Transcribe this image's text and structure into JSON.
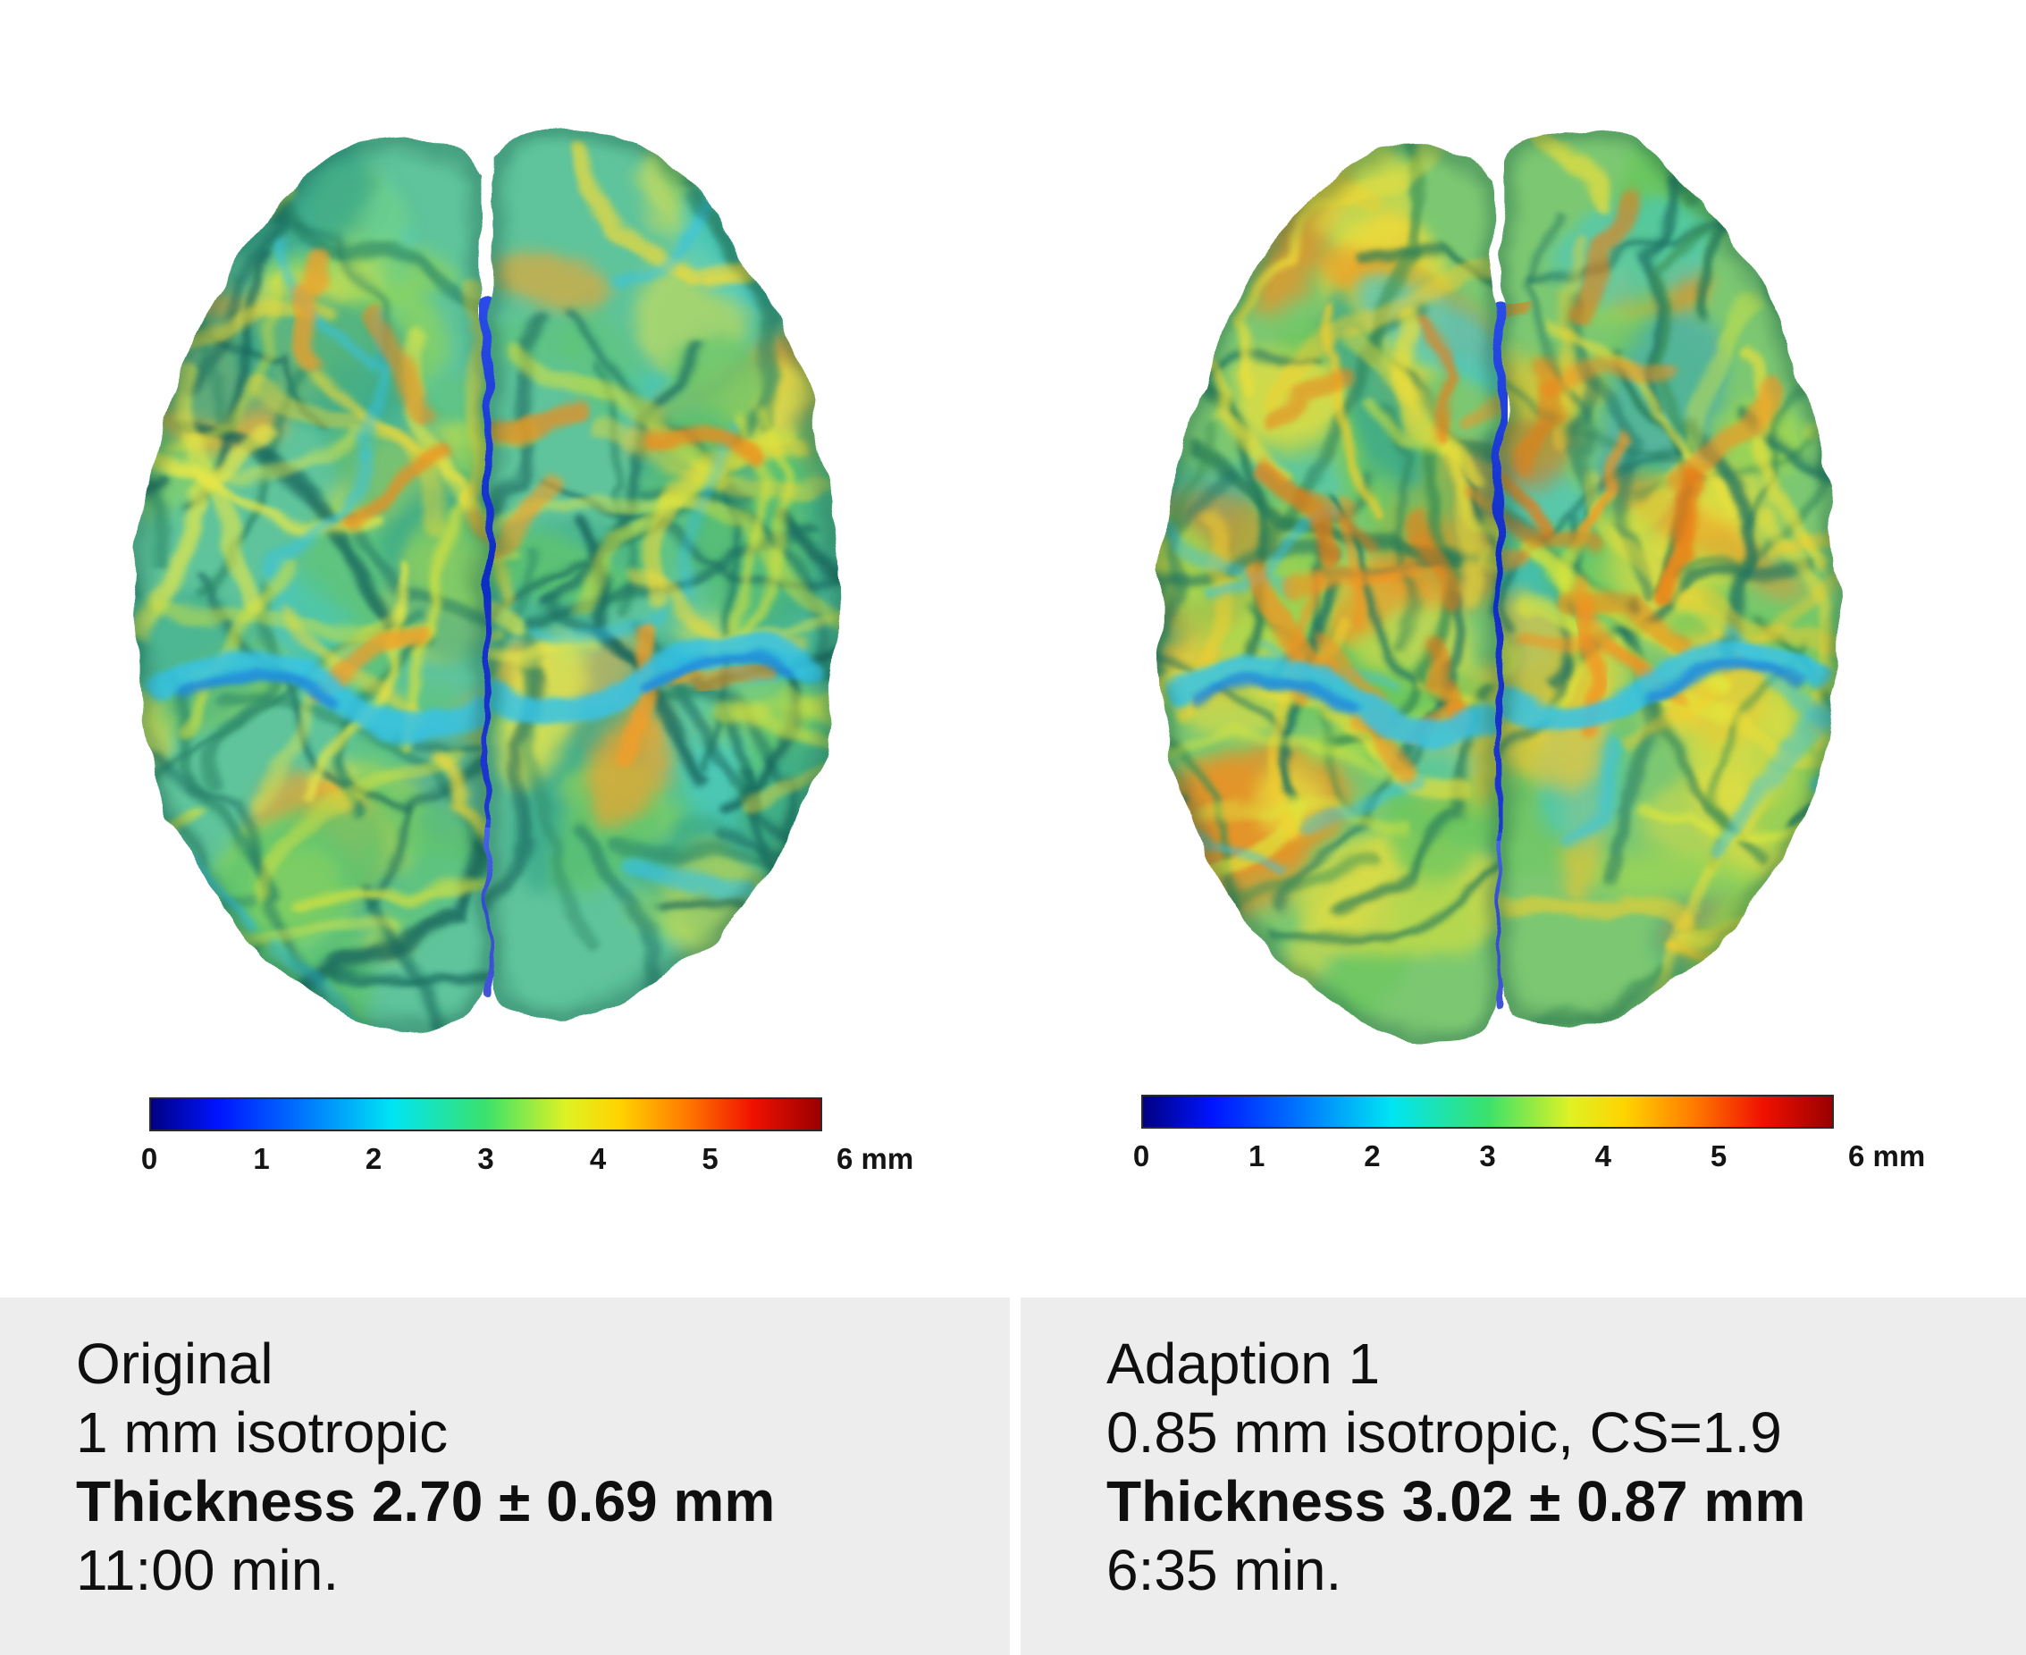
{
  "page": {
    "background": "#ffffff",
    "panel_background": "#ededed",
    "text_color": "#0f0f0f"
  },
  "colorbar": {
    "unit": "mm",
    "min": 0,
    "max": 6,
    "ticks": [
      "0",
      "1",
      "2",
      "3",
      "4",
      "5"
    ],
    "end_label": "6 mm",
    "colormap": "jet",
    "border_color": "#2a2a2a",
    "stops": [
      [
        "0",
        "#000082"
      ],
      [
        "0.10",
        "#0014ff"
      ],
      [
        "0.22",
        "#0070ff"
      ],
      [
        "0.36",
        "#00e4f4"
      ],
      [
        "0.50",
        "#3ae26b"
      ],
      [
        "0.62",
        "#dff224"
      ],
      [
        "0.70",
        "#ffd300"
      ],
      [
        "0.80",
        "#ff7a00"
      ],
      [
        "0.90",
        "#f01000"
      ],
      [
        "1",
        "#9a0000"
      ]
    ]
  },
  "panels": [
    {
      "id": "original",
      "title": "Original",
      "resolution": "1 mm isotropic",
      "thickness": "Thickness 2.70 ± 0.69 mm",
      "scan_time": "11:00 min.",
      "brain": {
        "seed": 7,
        "noise_seed": 3,
        "base": "#5fc49c",
        "fissure_top": "#2b4ce8",
        "fissure_mid": "#0f2cc4",
        "fissure_bottom": "#2038d0",
        "palette": [
          [
            "#3aa98b",
            3.0
          ],
          [
            "#5ec470",
            2.2
          ],
          [
            "#8fd45c",
            1.6
          ],
          [
            "#41c9d4",
            1.6
          ],
          [
            "#e6e44c",
            2.4
          ],
          [
            "#2f9fd0",
            0.5
          ],
          [
            "#f2a52e",
            0.45
          ]
        ],
        "sulci_colors": [
          "#1c7263",
          "#15645c",
          "#2a8768"
        ],
        "gyri_colors": [
          "#e9e84a",
          "#d8e23f",
          "#f4da38"
        ],
        "orange_colors": [
          "#f59d28",
          "#ef8b1f"
        ],
        "orange_count": 5,
        "cyan_band": "#35c3e8",
        "cyan_core": "#1b86dc"
      }
    },
    {
      "id": "adaption-1",
      "title": "Adaption 1",
      "resolution": "0.85 mm isotropic, CS=1.9",
      "thickness": "Thickness 3.02 ± 0.87 mm",
      "scan_time": "6:35 min.",
      "brain": {
        "seed": 23,
        "noise_seed": 9,
        "base": "#7cc872",
        "fissure_top": "#2b4ce8",
        "fissure_mid": "#0f2cc4",
        "fissure_bottom": "#2038d0",
        "palette": [
          [
            "#3aa98b",
            1.6
          ],
          [
            "#6cc75e",
            2.0
          ],
          [
            "#a3d84f",
            1.8
          ],
          [
            "#e8e040",
            3.0
          ],
          [
            "#f2c633",
            1.6
          ],
          [
            "#41c9d4",
            1.2
          ],
          [
            "#f08f21",
            1.7
          ],
          [
            "#e8701a",
            0.7
          ],
          [
            "#2f9fd0",
            0.35
          ]
        ],
        "sulci_colors": [
          "#257a58",
          "#1c7263",
          "#3a8f55"
        ],
        "gyri_colors": [
          "#efe03a",
          "#f5cf2e",
          "#dfe83e"
        ],
        "orange_colors": [
          "#f39320",
          "#ea7a18"
        ],
        "orange_count": 14,
        "cyan_band": "#35c3e8",
        "cyan_core": "#1b86dc"
      }
    }
  ]
}
